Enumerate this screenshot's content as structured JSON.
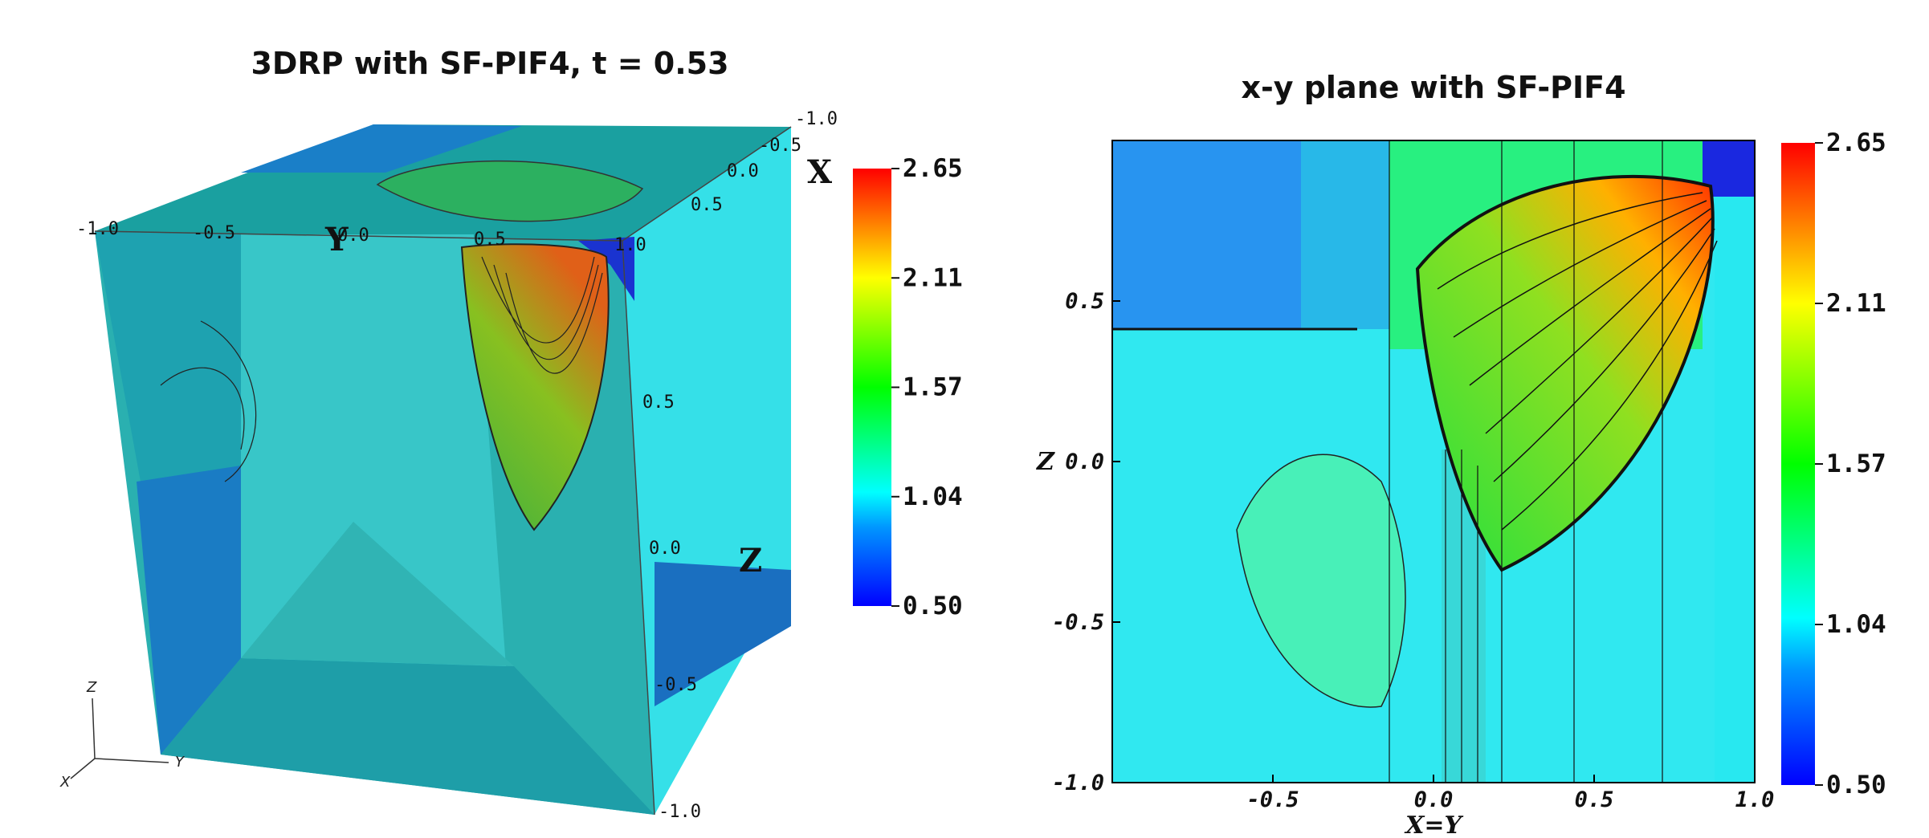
{
  "chart_data": [
    {
      "type": "heatmap",
      "title": "3DRP with SF-PIF4, t = 0.53",
      "axis_labels": {
        "x": "X",
        "y": "Y",
        "z": "Z"
      },
      "x_ticks": [
        "-1.0",
        "-0.5",
        "0.0",
        "0.5"
      ],
      "y_ticks": [
        "-1.0",
        "-0.5",
        "0.0",
        "0.5",
        "1.0"
      ],
      "z_ticks": [
        "-1.0",
        "-0.5",
        "0.0",
        "0.5"
      ],
      "colorbar": {
        "min": 0.5,
        "max": 2.65,
        "ticks": [
          "2.65",
          "2.11",
          "1.57",
          "1.04",
          "0.50"
        ]
      },
      "triad_labels": {
        "x": "X",
        "y": "Y",
        "z": "Z"
      }
    },
    {
      "type": "heatmap",
      "title": "x-y plane with SF-PIF4",
      "xlabel": "X=Y",
      "ylabel": "Z",
      "xlim": [
        -1.0,
        1.0
      ],
      "ylim": [
        -1.0,
        1.0
      ],
      "x_ticks": [
        "-0.5",
        "0.0",
        "0.5",
        "1.0"
      ],
      "y_ticks": [
        "-1.0",
        "-0.5",
        "0.0",
        "0.5"
      ],
      "colorbar": {
        "min": 0.5,
        "max": 2.65,
        "ticks": [
          "2.65",
          "2.11",
          "1.57",
          "1.04",
          "0.50"
        ]
      }
    }
  ]
}
